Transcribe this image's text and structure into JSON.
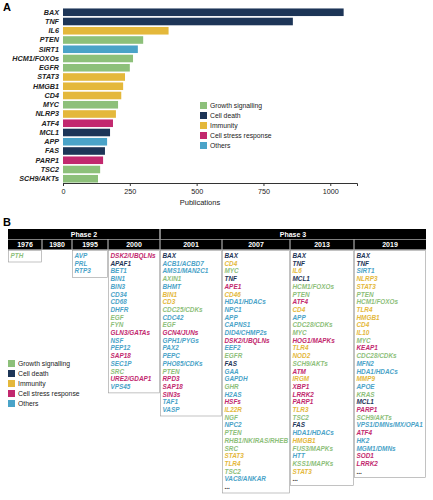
{
  "panel_labels": [
    "A",
    "B"
  ],
  "chart_data": {
    "type": "bar",
    "orientation": "horizontal",
    "xlabel": "Publications",
    "categories": [
      "BAX",
      "TNF",
      "IL6",
      "PTEN",
      "SIRT1",
      "HCM1/FOXOs",
      "EGFR",
      "STAT3",
      "HMGB1",
      "CD4",
      "MYC",
      "NLRP3",
      "ATF4",
      "MCL1",
      "APP",
      "FAS",
      "PARP1",
      "TSC2",
      "SCH9/AKTs"
    ],
    "series": [
      {
        "name": "Growth signalling",
        "color": "#8dc07a",
        "values": [
          null,
          null,
          null,
          300,
          null,
          262,
          250,
          null,
          null,
          null,
          206,
          null,
          null,
          null,
          null,
          null,
          null,
          139,
          131
        ]
      },
      {
        "name": "Cell death",
        "color": "#1d3557",
        "values": [
          1050,
          860,
          null,
          null,
          null,
          null,
          null,
          null,
          null,
          null,
          null,
          null,
          null,
          176,
          null,
          157,
          null,
          null,
          null
        ]
      },
      {
        "name": "Immunity",
        "color": "#e4b83b",
        "values": [
          null,
          null,
          395,
          null,
          null,
          null,
          null,
          232,
          225,
          218,
          null,
          198,
          null,
          null,
          null,
          null,
          null,
          null,
          null
        ]
      },
      {
        "name": "Cell stress response",
        "color": "#c2286e",
        "values": [
          null,
          null,
          null,
          null,
          null,
          null,
          null,
          null,
          null,
          null,
          null,
          null,
          187,
          null,
          null,
          null,
          150,
          null,
          null
        ]
      },
      {
        "name": "Others",
        "color": "#4aa3c8",
        "values": [
          null,
          null,
          null,
          null,
          280,
          null,
          null,
          null,
          null,
          null,
          null,
          null,
          null,
          null,
          165,
          null,
          null,
          null,
          null
        ]
      }
    ],
    "xlim": [
      0,
      1100
    ],
    "xticks": [
      0,
      250,
      500,
      750,
      1000
    ],
    "legend": "right"
  },
  "timeline": {
    "columns": [
      {
        "year": "1976",
        "phase": "Phase 2",
        "genes": [
          {
            "gene": "PTH",
            "group": "Growth signalling"
          }
        ]
      },
      {
        "year": "1980",
        "phase": "Phase 2",
        "genes": []
      },
      {
        "year": "1995",
        "phase": "Phase 2",
        "genes": [
          {
            "gene": "AVP",
            "group": "Others"
          },
          {
            "gene": "PRL",
            "group": "Others"
          },
          {
            "gene": "RTP3",
            "group": "Others"
          }
        ]
      },
      {
        "year": "2000",
        "phase": "Phase 2",
        "genes": [
          {
            "gene": "DSK2/UBQLNs",
            "group": "Cell stress response"
          },
          {
            "gene": "APAF1",
            "group": "Cell death"
          },
          {
            "gene": "BET1",
            "group": "Others"
          },
          {
            "gene": "BIN1",
            "group": "Others"
          },
          {
            "gene": "BIN3",
            "group": "Others"
          },
          {
            "gene": "CD34",
            "group": "Others"
          },
          {
            "gene": "CD68",
            "group": "Others"
          },
          {
            "gene": "DHFR",
            "group": "Others"
          },
          {
            "gene": "EGF",
            "group": "Growth signalling"
          },
          {
            "gene": "FYN",
            "group": "Growth signalling"
          },
          {
            "gene": "GLN3/GATAs",
            "group": "Cell stress response"
          },
          {
            "gene": "NSF",
            "group": "Others"
          },
          {
            "gene": "PEP12",
            "group": "Others"
          },
          {
            "gene": "SAP18",
            "group": "Cell stress response"
          },
          {
            "gene": "SEC1P",
            "group": "Others"
          },
          {
            "gene": "SRC",
            "group": "Growth signalling"
          },
          {
            "gene": "URE2/GDAP1",
            "group": "Cell stress response"
          },
          {
            "gene": "VPS45",
            "group": "Others"
          }
        ]
      },
      {
        "year": "2001",
        "phase": "Phase 3",
        "genes": [
          {
            "gene": "BAX",
            "group": "Cell death"
          },
          {
            "gene": "ACB1/ACBD7",
            "group": "Others"
          },
          {
            "gene": "AMS1/MAN2C1",
            "group": "Others"
          },
          {
            "gene": "AXIN1",
            "group": "Growth signalling"
          },
          {
            "gene": "BHMT",
            "group": "Others"
          },
          {
            "gene": "BIN1",
            "group": "Immunity"
          },
          {
            "gene": "CD3",
            "group": "Immunity"
          },
          {
            "gene": "CDC25/CDKs",
            "group": "Growth signalling"
          },
          {
            "gene": "CDC42",
            "group": "Others"
          },
          {
            "gene": "EGF",
            "group": "Growth signalling"
          },
          {
            "gene": "GCN4/JUNs",
            "group": "Cell stress response"
          },
          {
            "gene": "GPH1/PYGs",
            "group": "Others"
          },
          {
            "gene": "PAX2",
            "group": "Others"
          },
          {
            "gene": "PEPC",
            "group": "Others"
          },
          {
            "gene": "PHO85/CDKs",
            "group": "Others"
          },
          {
            "gene": "PTEN",
            "group": "Growth signalling"
          },
          {
            "gene": "RPD3",
            "group": "Cell stress response"
          },
          {
            "gene": "SAP18",
            "group": "Cell stress response"
          },
          {
            "gene": "SIN3s",
            "group": "Cell stress response"
          },
          {
            "gene": "TAF1",
            "group": "Others"
          },
          {
            "gene": "VASP",
            "group": "Others"
          }
        ]
      },
      {
        "year": "2007",
        "phase": "Phase 3",
        "genes": [
          {
            "gene": "BAX",
            "group": "Cell death"
          },
          {
            "gene": "CD4",
            "group": "Immunity"
          },
          {
            "gene": "MYC",
            "group": "Growth signalling"
          },
          {
            "gene": "TNF",
            "group": "Cell death"
          },
          {
            "gene": "APE1",
            "group": "Cell stress response"
          },
          {
            "gene": "CD46",
            "group": "Immunity"
          },
          {
            "gene": "HDA1/HDACs",
            "group": "Others"
          },
          {
            "gene": "NPC1",
            "group": "Others"
          },
          {
            "gene": "APP",
            "group": "Others"
          },
          {
            "gene": "CAPNS1",
            "group": "Others"
          },
          {
            "gene": "DID4/CHMP2s",
            "group": "Others"
          },
          {
            "gene": "DSK2/UBQLNs",
            "group": "Cell stress response"
          },
          {
            "gene": "EEF2",
            "group": "Others"
          },
          {
            "gene": "EGFR",
            "group": "Growth signalling"
          },
          {
            "gene": "FAS",
            "group": "Cell death"
          },
          {
            "gene": "GAA",
            "group": "Others"
          },
          {
            "gene": "GAPDH",
            "group": "Others"
          },
          {
            "gene": "GHR",
            "group": "Growth signalling"
          },
          {
            "gene": "H2AS",
            "group": "Others"
          },
          {
            "gene": "HSFs",
            "group": "Cell stress response"
          },
          {
            "gene": "IL22R",
            "group": "Immunity"
          },
          {
            "gene": "NGF",
            "group": "Growth signalling"
          },
          {
            "gene": "NPC2",
            "group": "Others"
          },
          {
            "gene": "PTEN",
            "group": "Growth signalling"
          },
          {
            "gene": "RHB1/NKIRAS/RHEB",
            "group": "Growth signalling"
          },
          {
            "gene": "SRC",
            "group": "Growth signalling"
          },
          {
            "gene": "STAT3",
            "group": "Immunity"
          },
          {
            "gene": "TLR4",
            "group": "Immunity"
          },
          {
            "gene": "TSC2",
            "group": "Growth signalling"
          },
          {
            "gene": "VAC8/ANKAR",
            "group": "Others"
          },
          {
            "gene": "..."
          }
        ]
      },
      {
        "year": "2013",
        "phase": "Phase 3",
        "genes": [
          {
            "gene": "BAX",
            "group": "Cell death"
          },
          {
            "gene": "TNF",
            "group": "Cell death"
          },
          {
            "gene": "IL6",
            "group": "Immunity"
          },
          {
            "gene": "MCL1",
            "group": "Cell death"
          },
          {
            "gene": "HCM1/FOXOs",
            "group": "Growth signalling"
          },
          {
            "gene": "PTEN",
            "group": "Growth signalling"
          },
          {
            "gene": "ATF4",
            "group": "Cell stress response"
          },
          {
            "gene": "CD4",
            "group": "Immunity"
          },
          {
            "gene": "APP",
            "group": "Others"
          },
          {
            "gene": "CDC28/CDKs",
            "group": "Growth signalling"
          },
          {
            "gene": "MYC",
            "group": "Growth signalling"
          },
          {
            "gene": "HOG1/MAPKs",
            "group": "Cell stress response"
          },
          {
            "gene": "TLR4",
            "group": "Immunity"
          },
          {
            "gene": "NOD2",
            "group": "Immunity"
          },
          {
            "gene": "SCH9/AKTs",
            "group": "Growth signalling"
          },
          {
            "gene": "ATM",
            "group": "Cell stress response"
          },
          {
            "gene": "IRGM",
            "group": "Immunity"
          },
          {
            "gene": "XBP1",
            "group": "Cell stress response"
          },
          {
            "gene": "LRRK2",
            "group": "Cell stress response"
          },
          {
            "gene": "PARP1",
            "group": "Cell stress response"
          },
          {
            "gene": "TLR3",
            "group": "Immunity"
          },
          {
            "gene": "TSC2",
            "group": "Growth signalling"
          },
          {
            "gene": "FAS",
            "group": "Cell death"
          },
          {
            "gene": "HDA1/HDACs",
            "group": "Others"
          },
          {
            "gene": "HMGB1",
            "group": "Immunity"
          },
          {
            "gene": "FUS3/MAPKs",
            "group": "Growth signalling"
          },
          {
            "gene": "HTT",
            "group": "Others"
          },
          {
            "gene": "KSS1/MAPKs",
            "group": "Growth signalling"
          },
          {
            "gene": "STAT3",
            "group": "Immunity"
          },
          {
            "gene": "..."
          }
        ]
      },
      {
        "year": "2019",
        "phase": "Phase 3",
        "genes": [
          {
            "gene": "BAX",
            "group": "Cell death"
          },
          {
            "gene": "TNF",
            "group": "Cell death"
          },
          {
            "gene": "SIRT1",
            "group": "Others"
          },
          {
            "gene": "NLRP3",
            "group": "Immunity"
          },
          {
            "gene": "STAT3",
            "group": "Immunity"
          },
          {
            "gene": "PTEN",
            "group": "Growth signalling"
          },
          {
            "gene": "HCM1/FOXOs",
            "group": "Growth signalling"
          },
          {
            "gene": "TLR4",
            "group": "Immunity"
          },
          {
            "gene": "HMGB1",
            "group": "Immunity"
          },
          {
            "gene": "CD4",
            "group": "Immunity"
          },
          {
            "gene": "IL10",
            "group": "Immunity"
          },
          {
            "gene": "MYC",
            "group": "Growth signalling"
          },
          {
            "gene": "KEAP1",
            "group": "Cell stress response"
          },
          {
            "gene": "CDC28/CDKs",
            "group": "Growth signalling"
          },
          {
            "gene": "MFN2",
            "group": "Others"
          },
          {
            "gene": "HDA1/HDACs",
            "group": "Others"
          },
          {
            "gene": "MMP9",
            "group": "Immunity"
          },
          {
            "gene": "APOE",
            "group": "Others"
          },
          {
            "gene": "KRAS",
            "group": "Growth signalling"
          },
          {
            "gene": "MCL1",
            "group": "Cell death"
          },
          {
            "gene": "PARP1",
            "group": "Cell stress response"
          },
          {
            "gene": "SCH9/AKTs",
            "group": "Growth signalling"
          },
          {
            "gene": "VPS1/DMNs/MX/OPA1",
            "group": "Others"
          },
          {
            "gene": "ATF4",
            "group": "Cell stress response"
          },
          {
            "gene": "HK2",
            "group": "Others"
          },
          {
            "gene": "MGM1/DMNs",
            "group": "Others"
          },
          {
            "gene": "SOD1",
            "group": "Cell stress response"
          },
          {
            "gene": "LRRK2",
            "group": "Cell stress response"
          },
          {
            "gene": "..."
          }
        ]
      }
    ]
  }
}
